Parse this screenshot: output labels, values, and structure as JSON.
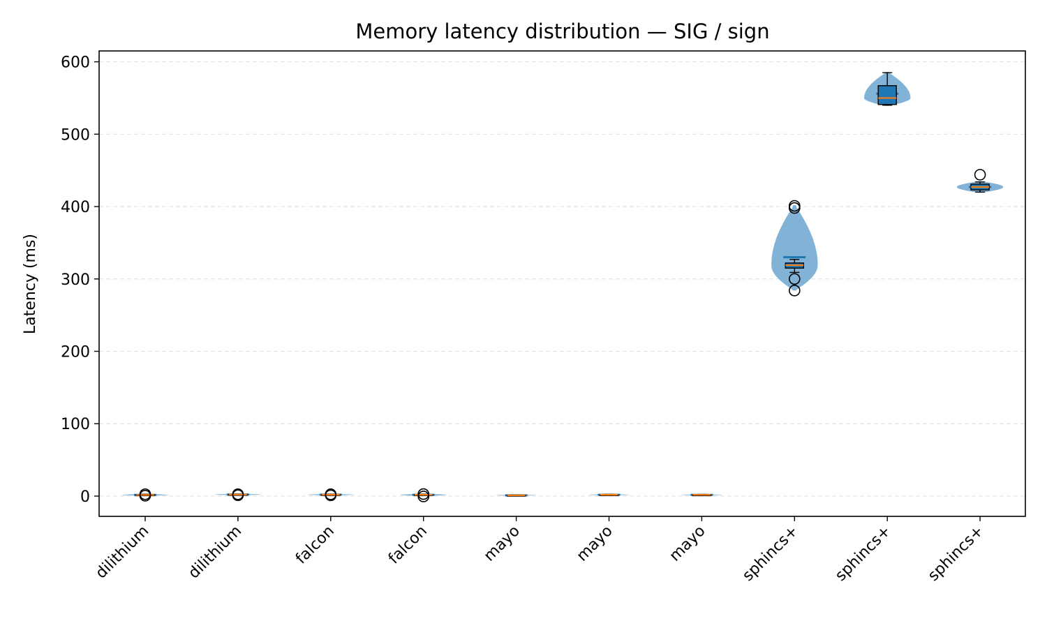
{
  "chart_data": {
    "type": "violin+box",
    "title": "Memory latency distribution — SIG / sign",
    "xlabel": "",
    "ylabel": "Latency (ms)",
    "ylim": [
      -28,
      615
    ],
    "yticks": [
      0,
      100,
      200,
      300,
      400,
      500,
      600
    ],
    "grid": "y-dashed",
    "colors": {
      "violin": "#7bafd4",
      "box_face": "#1f77b4",
      "median": "#ff7f0e",
      "mean_line": "#1f77b4",
      "grid": "#e3e3e3",
      "frame": "#000000"
    },
    "categories": [
      "dilithium",
      "dilithium",
      "falcon",
      "falcon",
      "mayo",
      "mayo",
      "mayo",
      "sphincs+",
      "sphincs+",
      "sphincs+"
    ],
    "series": [
      {
        "category": "dilithium",
        "min": 0.8,
        "q1": 1.2,
        "median": 1.5,
        "q3": 2.0,
        "max": 2.5,
        "mean": 1.6,
        "violin_min": 0.5,
        "violin_max": 3.0,
        "violin_width": 0.25,
        "outliers": [
          0.6,
          2.6
        ]
      },
      {
        "category": "dilithium",
        "min": 1.5,
        "q1": 1.8,
        "median": 2.1,
        "q3": 2.5,
        "max": 2.8,
        "mean": 2.1,
        "violin_min": 1.2,
        "violin_max": 3.2,
        "violin_width": 0.25,
        "outliers": [
          1.2,
          2.6
        ]
      },
      {
        "category": "falcon",
        "min": 1.2,
        "q1": 1.6,
        "median": 1.9,
        "q3": 2.3,
        "max": 2.7,
        "mean": 1.9,
        "violin_min": 1.0,
        "violin_max": 3.0,
        "violin_width": 0.25,
        "outliers": [
          1.0,
          2.5
        ]
      },
      {
        "category": "falcon",
        "min": 1.0,
        "q1": 1.5,
        "median": 1.8,
        "q3": 2.2,
        "max": 2.6,
        "mean": 1.8,
        "violin_min": 0.2,
        "violin_max": 3.0,
        "violin_width": 0.25,
        "outliers": [
          -0.5,
          2.8
        ]
      },
      {
        "category": "mayo",
        "min": 0.6,
        "q1": 0.9,
        "median": 1.1,
        "q3": 1.4,
        "max": 1.7,
        "mean": 1.1,
        "violin_min": 0.5,
        "violin_max": 1.9,
        "violin_width": 0.22,
        "outliers": []
      },
      {
        "category": "mayo",
        "min": 1.2,
        "q1": 1.5,
        "median": 1.8,
        "q3": 2.1,
        "max": 2.4,
        "mean": 1.8,
        "violin_min": 1.0,
        "violin_max": 2.6,
        "violin_width": 0.22,
        "outliers": []
      },
      {
        "category": "mayo",
        "min": 1.1,
        "q1": 1.4,
        "median": 1.7,
        "q3": 2.0,
        "max": 2.3,
        "mean": 1.7,
        "violin_min": 0.9,
        "violin_max": 2.5,
        "violin_width": 0.22,
        "outliers": []
      },
      {
        "category": "sphincs+",
        "min": 309,
        "q1": 315,
        "median": 319,
        "q3": 322,
        "max": 327,
        "mean": 330,
        "violin_min": 284,
        "violin_max": 402,
        "violin_width": 0.25,
        "outliers": [
          284,
          300,
          398,
          401
        ]
      },
      {
        "category": "sphincs+",
        "min": 540,
        "q1": 541,
        "median": 550,
        "q3": 567,
        "max": 585,
        "mean": 556,
        "violin_min": 539,
        "violin_max": 586,
        "violin_width": 0.25,
        "outliers": []
      },
      {
        "category": "sphincs+",
        "min": 420,
        "q1": 423,
        "median": 427,
        "q3": 431,
        "max": 434,
        "mean": 427,
        "violin_min": 419,
        "violin_max": 435,
        "violin_width": 0.25,
        "outliers": [
          444
        ]
      }
    ]
  }
}
